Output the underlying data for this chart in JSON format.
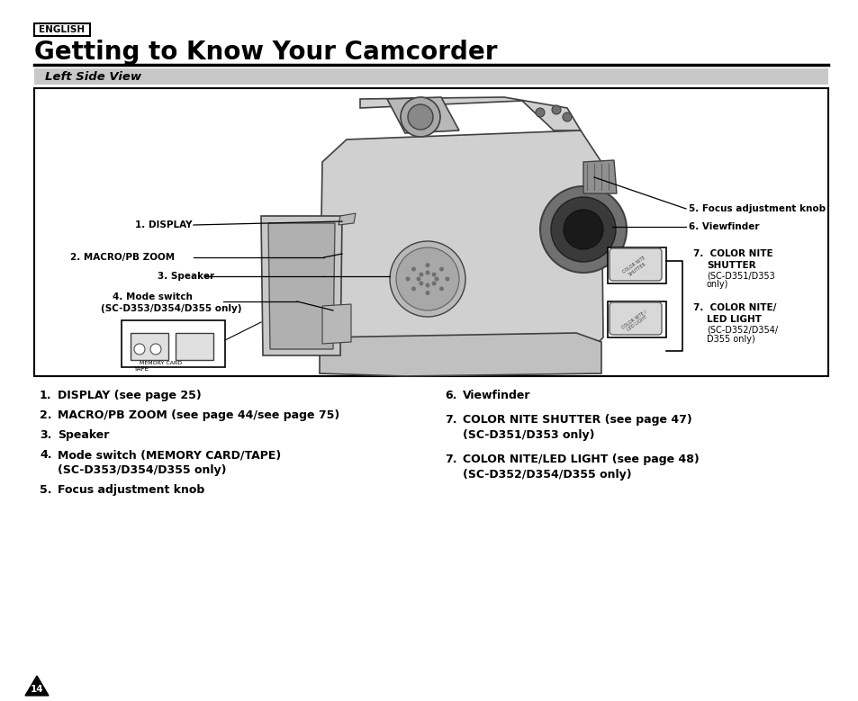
{
  "bg_color": "#ffffff",
  "title_english": "ENGLISH",
  "title_main": "Getting to Know Your Camcorder",
  "section_title": "Left Side View",
  "section_bg": "#c8c8c8",
  "page_num": "14",
  "label1": "1. DISPLAY",
  "label2": "2. MACRO/PB ZOOM",
  "label3": "3. Speaker",
  "label4_line1": "4. Mode switch",
  "label4_line2": "(SC-D353/D354/D355 only)",
  "label5": "5. Focus adjustment knob",
  "label6": "6. Viewfinder",
  "label7a_line1": "7.  COLOR NITE",
  "label7a_line2": "SHUTTER",
  "label7a_line3": "(SC-D351/D353",
  "label7a_line4": "only)",
  "label7b_line1": "7.  COLOR NITE/",
  "label7b_line2": "LED LIGHT",
  "label7b_line3": "(SC-D352/D354/",
  "label7b_line4": "D355 only)",
  "items_left": [
    [
      "1.",
      "DISPLAY (see page 25)",
      ""
    ],
    [
      "2.",
      "MACRO/PB ZOOM (see page 44/see page 75)",
      ""
    ],
    [
      "3.",
      "Speaker",
      ""
    ],
    [
      "4.",
      "Mode switch (MEMORY CARD/TAPE)",
      "(SC-D353/D354/D355 only)"
    ],
    [
      "5.",
      "Focus adjustment knob",
      ""
    ]
  ],
  "items_right": [
    [
      "6.",
      "Viewfinder",
      ""
    ],
    [
      "7.",
      "COLOR NITE SHUTTER (see page 47)",
      "(SC-D351/D353 only)"
    ],
    [
      "7.",
      "COLOR NITE/LED LIGHT (see page 48)",
      "(SC-D352/D354/D355 only)"
    ]
  ]
}
